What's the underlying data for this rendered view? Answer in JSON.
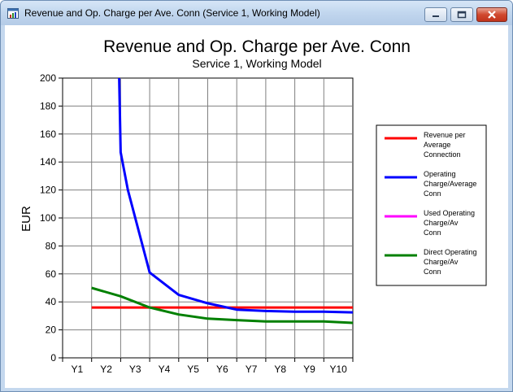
{
  "window": {
    "title": "Revenue and Op. Charge per Ave. Conn (Service 1, Working Model)",
    "buttons": [
      "minimize",
      "maximize",
      "close"
    ]
  },
  "chart_data": {
    "type": "line",
    "title": "Revenue and Op. Charge per Ave. Conn",
    "subtitle": "Service 1, Working Model",
    "ylabel": "EUR",
    "xlabel": "",
    "categories": [
      "Y1",
      "Y2",
      "Y3",
      "Y4",
      "Y5",
      "Y6",
      "Y7",
      "Y8",
      "Y9",
      "Y10"
    ],
    "ylim": [
      0,
      200
    ],
    "yticks": [
      0,
      20,
      40,
      60,
      80,
      100,
      120,
      140,
      160,
      180,
      200
    ],
    "grid": true,
    "legend_position": "right",
    "series": [
      {
        "name": "Revenue per Average Connection",
        "color": "#ff0000",
        "points": [
          [
            1,
            36
          ],
          [
            10,
            36
          ]
        ]
      },
      {
        "name": "Operating Charge/Average Conn",
        "color": "#0000ff",
        "points": [
          [
            1.95,
            200
          ],
          [
            2.0,
            147
          ],
          [
            2.25,
            120
          ],
          [
            3.0,
            61
          ],
          [
            4.0,
            45
          ],
          [
            5.0,
            39
          ],
          [
            6.0,
            34.5
          ],
          [
            7.0,
            33.5
          ],
          [
            8.0,
            33
          ],
          [
            9.0,
            33
          ],
          [
            10.0,
            32.5
          ]
        ]
      },
      {
        "name": "Used Operating Charge/Av Conn",
        "color": "#ff00ff",
        "points": []
      },
      {
        "name": "Direct Operating Charge/Av Conn",
        "color": "#008000",
        "points": [
          [
            1.0,
            50
          ],
          [
            2.0,
            44
          ],
          [
            3.0,
            36
          ],
          [
            4.0,
            31
          ],
          [
            5.0,
            28
          ],
          [
            6.0,
            27
          ],
          [
            7.0,
            26
          ],
          [
            8.0,
            26
          ],
          [
            9.0,
            26
          ],
          [
            10.0,
            25
          ]
        ]
      }
    ]
  }
}
